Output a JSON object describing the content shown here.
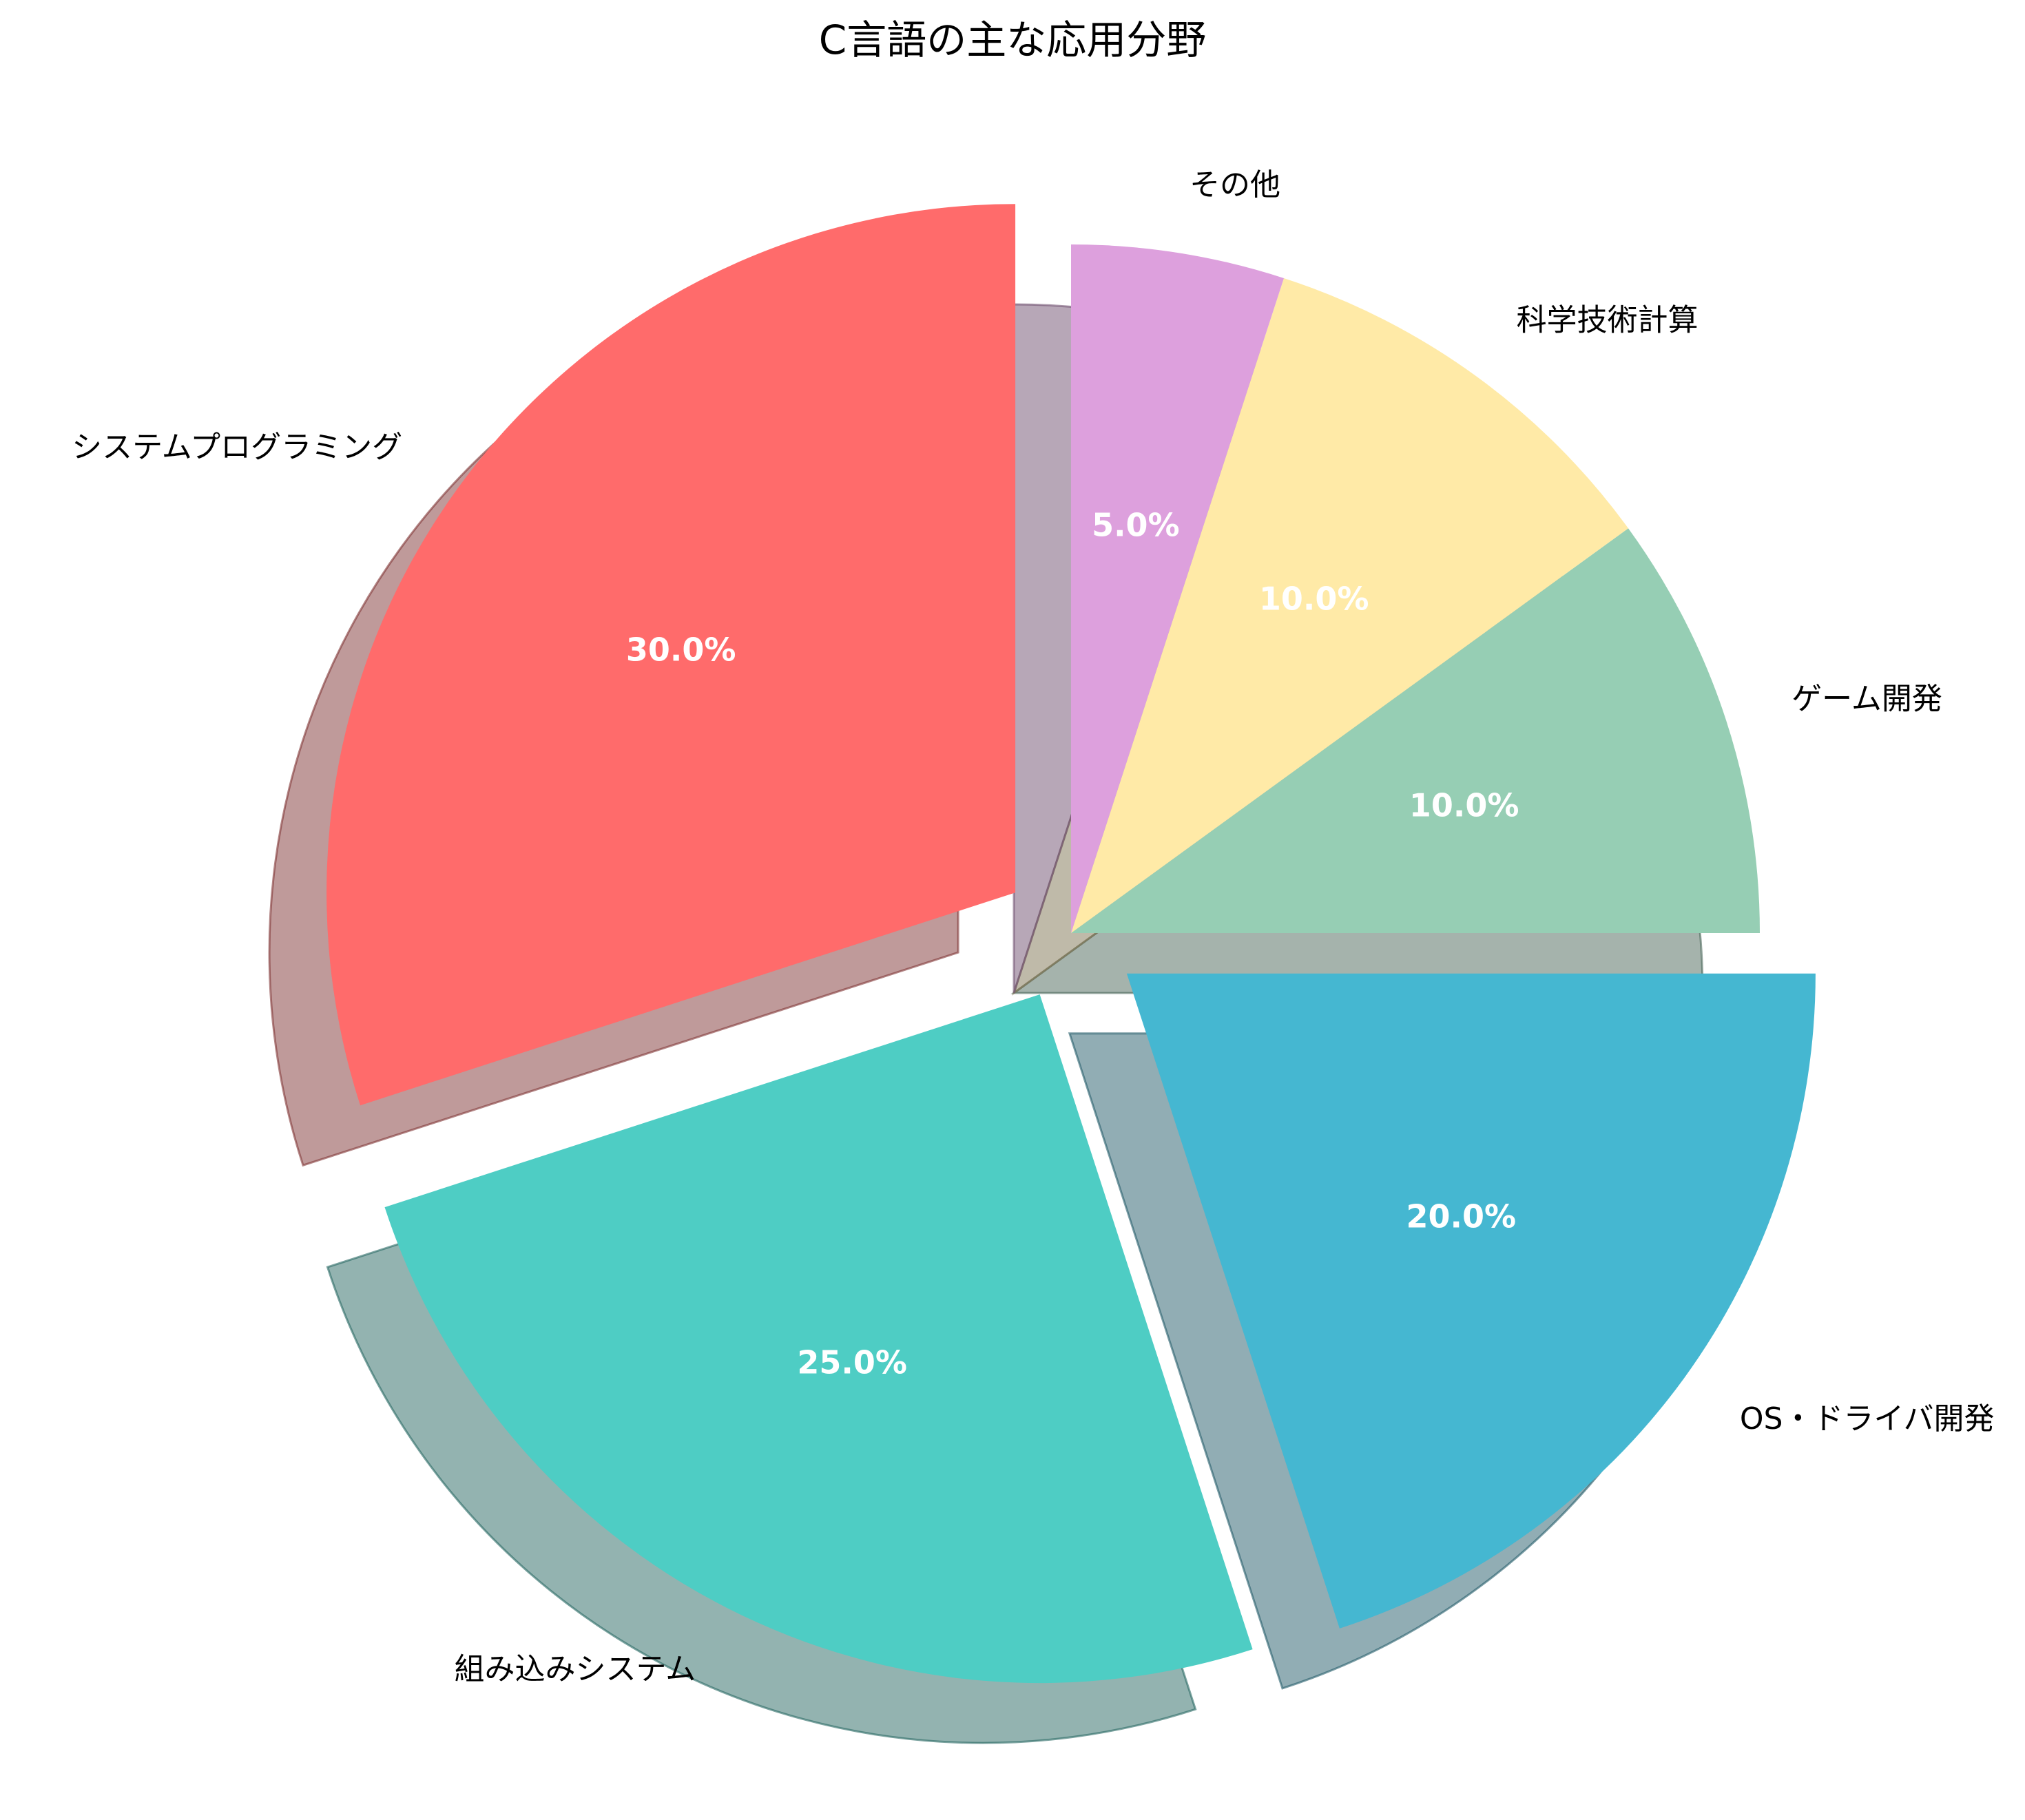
{
  "chart_data": {
    "type": "pie",
    "title": "C言語の主な応用分野",
    "start_angle": 90,
    "direction": "counterclockwise",
    "shadow": true,
    "categories": [
      "システムプログラミング",
      "組み込みシステム",
      "OS・ドライバ開発",
      "ゲーム開発",
      "科学技術計算",
      "その他"
    ],
    "values": [
      30,
      25,
      20,
      10,
      10,
      5
    ],
    "percent_labels": [
      "30.0%",
      "25.0%",
      "20.0%",
      "10.0%",
      "10.0%",
      "5.0%"
    ],
    "explode": [
      0.1,
      0.1,
      0.1,
      0,
      0,
      0
    ],
    "colors": [
      "#FF6B6B",
      "#4ECDC4",
      "#45B7D1",
      "#96CEB4",
      "#FFEAA7",
      "#DDA0DD"
    ]
  }
}
